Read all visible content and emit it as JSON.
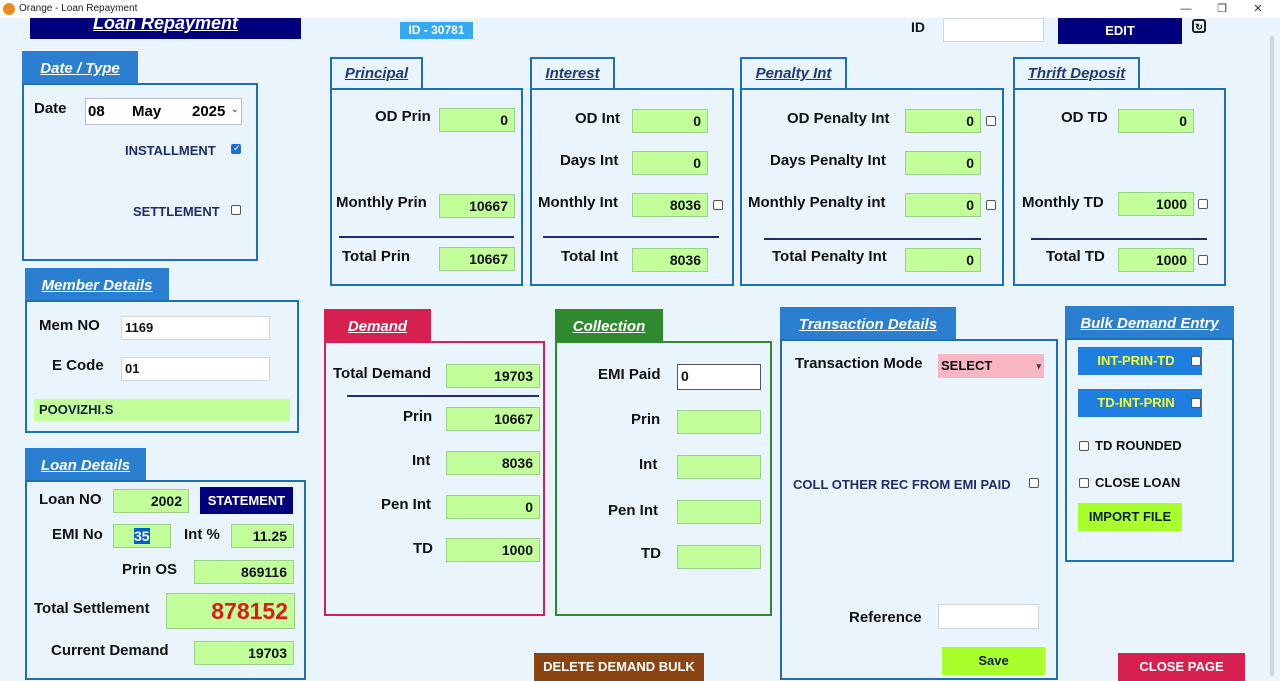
{
  "window": {
    "title": "Orange - Loan Repayment",
    "minimize": "—",
    "maximize": "❐",
    "close": "✕"
  },
  "header": {
    "app_title": "Loan Repayment",
    "id_badge": "ID - 30781",
    "id_label": "ID",
    "id_value": "",
    "edit_label": "EDIT"
  },
  "date_type": {
    "tab": "Date / Type",
    "date_label": "Date",
    "day": "08",
    "month": "May",
    "year": "2025",
    "installment_label": "INSTALLMENT",
    "installment_checked": true,
    "settlement_label": "SETTLEMENT",
    "settlement_checked": false
  },
  "member": {
    "tab": "Member Details",
    "mem_no_label": "Mem NO",
    "mem_no": "1169",
    "ecode_label": "E Code",
    "ecode": "01",
    "name": "POOVIZHI.S"
  },
  "loan": {
    "tab": "Loan Details",
    "loan_no_label": "Loan NO",
    "loan_no": "2002",
    "statement_label": "STATEMENT",
    "emi_no_label": "EMI No",
    "emi_no": "35",
    "int_pct_label": "Int %",
    "int_pct": "11.25",
    "prin_os_label": "Prin OS",
    "prin_os": "869116",
    "total_settlement_label": "Total Settlement",
    "total_settlement": "878152",
    "current_demand_label": "Current Demand",
    "current_demand": "19703"
  },
  "principal": {
    "tab": "Principal",
    "od_label": "OD Prin",
    "od": "0",
    "monthly_label": "Monthly Prin",
    "monthly": "10667",
    "total_label": "Total Prin",
    "total": "10667"
  },
  "interest": {
    "tab": "Interest",
    "od_label": "OD Int",
    "od": "0",
    "days_label": "Days Int",
    "days": "0",
    "monthly_label": "Monthly Int",
    "monthly": "8036",
    "total_label": "Total Int",
    "total": "8036"
  },
  "penalty": {
    "tab": "Penalty Int",
    "od_label": "OD Penalty Int",
    "od": "0",
    "days_label": "Days Penalty Int",
    "days": "0",
    "monthly_label": "Monthly Penalty int",
    "monthly": "0",
    "total_label": "Total Penalty Int",
    "total": "0"
  },
  "thrift": {
    "tab": "Thrift Deposit",
    "od_label": "OD TD",
    "od": "0",
    "monthly_label": "Monthly TD",
    "monthly": "1000",
    "total_label": "Total TD",
    "total": "1000"
  },
  "demand": {
    "tab": "Demand",
    "total_label": "Total Demand",
    "total": "19703",
    "prin_label": "Prin",
    "prin": "10667",
    "int_label": "Int",
    "int": "8036",
    "pen_label": "Pen Int",
    "pen": "0",
    "td_label": "TD",
    "td": "1000"
  },
  "collection": {
    "tab": "Collection",
    "emi_label": "EMI Paid",
    "emi": "0",
    "prin_label": "Prin",
    "int_label": "Int",
    "pen_label": "Pen Int",
    "td_label": "TD",
    "prin": "",
    "int": "",
    "pen": "",
    "td": ""
  },
  "transaction": {
    "tab": "Transaction Details",
    "mode_label": "Transaction Mode",
    "mode_value": "SELECT",
    "coll_other_label": "COLL OTHER REC FROM EMI PAID",
    "reference_label": "Reference",
    "reference": "",
    "save_label": "Save"
  },
  "bulk": {
    "tab": "Bulk Demand Entry",
    "int_prin_td": "INT-PRIN-TD",
    "td_int_prin": "TD-INT-PRIN",
    "td_rounded": "TD ROUNDED",
    "close_loan": "CLOSE LOAN",
    "import_file": "IMPORT FILE"
  },
  "footer": {
    "delete_bulk": "DELETE DEMAND BULK",
    "close_page": "CLOSE PAGE"
  },
  "colors": {
    "navy": "#00007f",
    "blue_border": "#1f6fb5",
    "green_field": "#c2ff9b",
    "demand_red": "#d6204f",
    "collection_green": "#2f8a2f",
    "delete_brown": "#8b4513"
  }
}
